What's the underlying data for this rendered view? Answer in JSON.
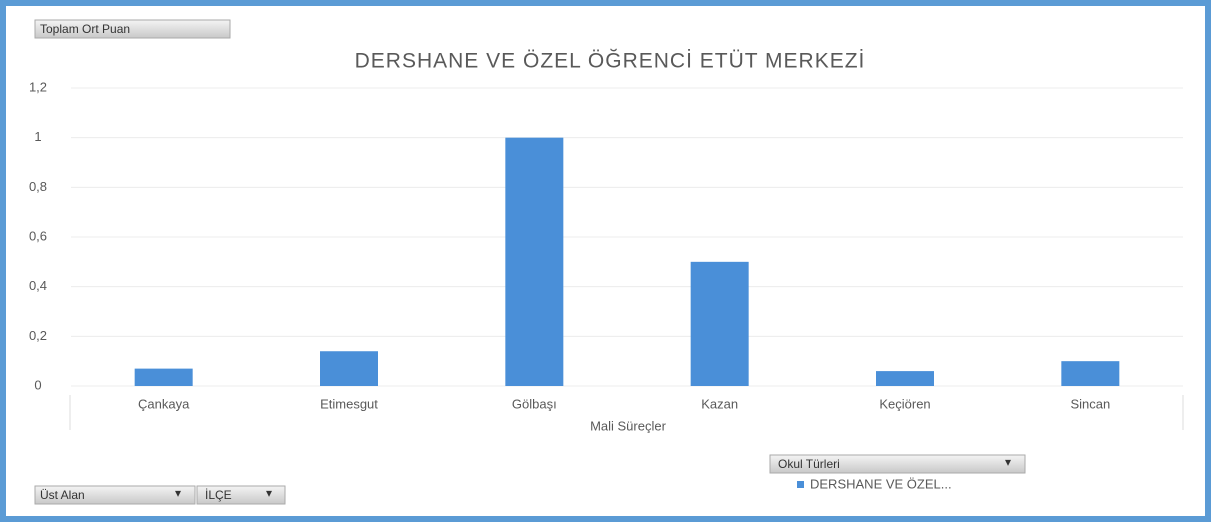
{
  "chart_data": {
    "type": "bar",
    "title": "DERSHANE VE ÖZEL ÖĞRENCİ ETÜT MERKEZİ",
    "x_label": "Mali Süreçler",
    "categories": [
      "Çankaya",
      "Etimesgut",
      "Gölbaşı",
      "Kazan",
      "Keçiören",
      "Sincan"
    ],
    "series": [
      {
        "name": "DERSHANE VE ÖZEL...",
        "color": "#4a8fd8",
        "values": [
          0.07,
          0.14,
          1,
          0.5,
          0.06,
          0.1
        ]
      }
    ],
    "ylim": [
      0,
      1.2
    ],
    "yticks": [
      0,
      {
        "value": 0.2,
        "label": "0,2"
      },
      {
        "value": 0.4,
        "label": "0,4"
      },
      {
        "value": 0.6,
        "label": "0,6"
      },
      {
        "value": 0.8,
        "label": "0,8"
      },
      1,
      {
        "value": 1.2,
        "label": "1,2"
      }
    ],
    "grid": true
  },
  "pivot_buttons": {
    "value_field": "Toplam Ort Puan",
    "legend_field": "Okul Türleri",
    "axis_fields": [
      "Üst Alan",
      "İLÇE"
    ]
  }
}
